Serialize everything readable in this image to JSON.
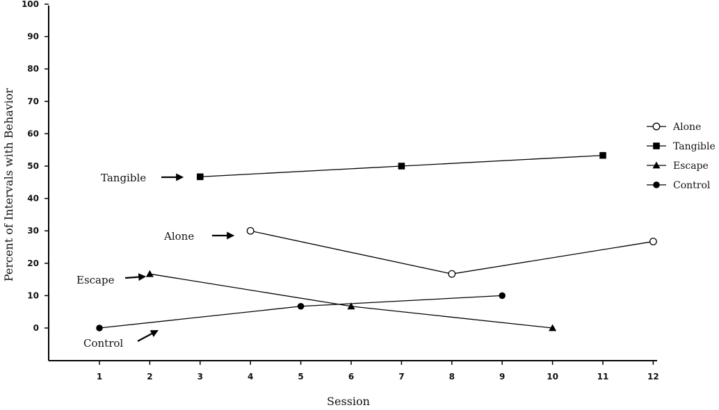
{
  "chart_data": {
    "type": "line",
    "xlabel": "Session",
    "ylabel": "Percent of Intervals with Behavior",
    "x_ticks": [
      1,
      2,
      3,
      4,
      5,
      6,
      7,
      8,
      9,
      10,
      11,
      12
    ],
    "y_ticks": [
      0,
      10,
      20,
      30,
      40,
      50,
      60,
      70,
      80,
      90,
      100
    ],
    "xlim": [
      0,
      12.5
    ],
    "ylim": [
      -11,
      100
    ],
    "legend_position": "right",
    "series": [
      {
        "name": "Alone",
        "marker": "circle-open",
        "points": [
          [
            4,
            30
          ],
          [
            8,
            16.7
          ],
          [
            12,
            26.7
          ]
        ]
      },
      {
        "name": "Tangible",
        "marker": "square",
        "points": [
          [
            3,
            46.7
          ],
          [
            7,
            50
          ],
          [
            11,
            53.3
          ]
        ]
      },
      {
        "name": "Escape",
        "marker": "triangle",
        "points": [
          [
            2,
            16.7
          ],
          [
            6,
            6.7
          ],
          [
            10,
            0
          ]
        ]
      },
      {
        "name": "Control",
        "marker": "circle-filled",
        "points": [
          [
            1,
            0
          ],
          [
            5,
            6.7
          ],
          [
            9,
            10
          ]
        ]
      }
    ],
    "annotations": [
      {
        "text": "Tangible",
        "series": "Tangible"
      },
      {
        "text": "Alone",
        "series": "Alone"
      },
      {
        "text": "Escape",
        "series": "Escape"
      },
      {
        "text": "Control",
        "series": "Control"
      }
    ]
  }
}
